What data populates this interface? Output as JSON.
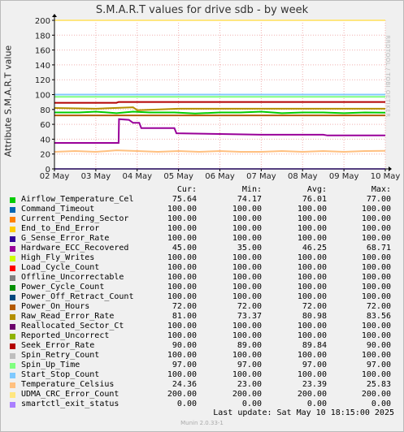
{
  "chart_data": {
    "type": "line",
    "title": "S.M.A.R.T values for drive sdb - by week",
    "ylabel": "Attribute S.M.A.R.T value",
    "xlabel": "",
    "ylim": [
      0,
      200
    ],
    "yticks": [
      0,
      20,
      40,
      60,
      80,
      100,
      120,
      140,
      160,
      180,
      200
    ],
    "xticks": [
      "02 May",
      "03 May",
      "04 May",
      "05 May",
      "06 May",
      "07 May",
      "08 May",
      "09 May",
      "10 May"
    ],
    "grid": true,
    "legend": "below",
    "legend_headers": {
      "cur": "Cur:",
      "min": "Min:",
      "avg": "Avg:",
      "max": "Max:"
    },
    "series": [
      {
        "name": "Airflow_Temperature_Cel",
        "color": "#00cc00",
        "cur": "75.64",
        "min": "74.17",
        "avg": "76.01",
        "max": "77.00"
      },
      {
        "name": "Command_Timeout",
        "color": "#0066b3",
        "cur": "100.00",
        "min": "100.00",
        "avg": "100.00",
        "max": "100.00"
      },
      {
        "name": "Current_Pending_Sector",
        "color": "#ff8000",
        "cur": "100.00",
        "min": "100.00",
        "avg": "100.00",
        "max": "100.00"
      },
      {
        "name": "End_to_End_Error",
        "color": "#ffcc00",
        "cur": "100.00",
        "min": "100.00",
        "avg": "100.00",
        "max": "100.00"
      },
      {
        "name": "G_Sense_Error_Rate",
        "color": "#330099",
        "cur": "100.00",
        "min": "100.00",
        "avg": "100.00",
        "max": "100.00"
      },
      {
        "name": "Hardware_ECC_Recovered",
        "color": "#990099",
        "cur": "45.00",
        "min": "35.00",
        "avg": "46.25",
        "max": "68.71"
      },
      {
        "name": "High_Fly_Writes",
        "color": "#ccff00",
        "cur": "100.00",
        "min": "100.00",
        "avg": "100.00",
        "max": "100.00"
      },
      {
        "name": "Load_Cycle_Count",
        "color": "#ff0000",
        "cur": "100.00",
        "min": "100.00",
        "avg": "100.00",
        "max": "100.00"
      },
      {
        "name": "Offline_Uncorrectable",
        "color": "#808080",
        "cur": "100.00",
        "min": "100.00",
        "avg": "100.00",
        "max": "100.00"
      },
      {
        "name": "Power_Cycle_Count",
        "color": "#008f00",
        "cur": "100.00",
        "min": "100.00",
        "avg": "100.00",
        "max": "100.00"
      },
      {
        "name": "Power_Off_Retract_Count",
        "color": "#00487d",
        "cur": "100.00",
        "min": "100.00",
        "avg": "100.00",
        "max": "100.00"
      },
      {
        "name": "Power_On_Hours",
        "color": "#b35a00",
        "cur": "72.00",
        "min": "72.00",
        "avg": "72.00",
        "max": "72.00"
      },
      {
        "name": "Raw_Read_Error_Rate",
        "color": "#b38f00",
        "cur": "81.00",
        "min": "73.37",
        "avg": "80.98",
        "max": "83.56"
      },
      {
        "name": "Reallocated_Sector_Ct",
        "color": "#6b006b",
        "cur": "100.00",
        "min": "100.00",
        "avg": "100.00",
        "max": "100.00"
      },
      {
        "name": "Reported_Uncorrect",
        "color": "#8fb300",
        "cur": "100.00",
        "min": "100.00",
        "avg": "100.00",
        "max": "100.00"
      },
      {
        "name": "Seek_Error_Rate",
        "color": "#b30000",
        "cur": "90.00",
        "min": "89.00",
        "avg": "89.84",
        "max": "90.00"
      },
      {
        "name": "Spin_Retry_Count",
        "color": "#bebebe",
        "cur": "100.00",
        "min": "100.00",
        "avg": "100.00",
        "max": "100.00"
      },
      {
        "name": "Spin_Up_Time",
        "color": "#80ff80",
        "cur": "97.00",
        "min": "97.00",
        "avg": "97.00",
        "max": "97.00"
      },
      {
        "name": "Start_Stop_Count",
        "color": "#80c9ff",
        "cur": "100.00",
        "min": "100.00",
        "avg": "100.00",
        "max": "100.00"
      },
      {
        "name": "Temperature_Celsius",
        "color": "#ffc080",
        "cur": "24.36",
        "min": "23.00",
        "avg": "23.39",
        "max": "25.83"
      },
      {
        "name": "UDMA_CRC_Error_Count",
        "color": "#ffe680",
        "cur": "200.00",
        "min": "200.00",
        "avg": "200.00",
        "max": "200.00"
      },
      {
        "name": "smartctl_exit_status",
        "color": "#aa80ff",
        "cur": "0.00",
        "min": "0.00",
        "avg": "0.00",
        "max": "0.00"
      }
    ],
    "lines": {
      "Hardware_ECC_Recovered": {
        "x": [
          2.0,
          3.55,
          3.56,
          3.8,
          3.9,
          4.05,
          4.1,
          4.9,
          4.95,
          6.0,
          7.0,
          7.5,
          8.0,
          8.5,
          8.6,
          10.0
        ],
        "y": [
          35,
          35,
          67,
          66,
          62,
          62,
          55,
          55,
          48,
          47,
          46,
          46,
          46,
          46,
          45,
          45
        ]
      },
      "Airflow_Temperature_Cel": {
        "x": [
          2.0,
          2.6,
          3.0,
          3.5,
          3.9,
          4.3,
          4.9,
          5.4,
          6.0,
          6.5,
          7.0,
          7.5,
          8.0,
          8.5,
          9.0,
          9.5,
          10.0
        ],
        "y": [
          76,
          76,
          77,
          75,
          77,
          76,
          76,
          74.5,
          76,
          76,
          77,
          75,
          76,
          76,
          75,
          76,
          75.6
        ]
      },
      "Raw_Read_Error_Rate": {
        "x": [
          2.0,
          3.0,
          3.9,
          4.0,
          5.0,
          6.0,
          7.0,
          8.0,
          9.0,
          10.0
        ],
        "y": [
          82,
          81,
          83,
          79,
          81,
          81,
          81,
          81,
          81,
          81
        ]
      },
      "Temperature_Celsius": {
        "x": [
          2.0,
          2.5,
          3.0,
          3.5,
          4.0,
          4.5,
          5.0,
          5.5,
          6.0,
          6.5,
          7.0,
          7.5,
          8.0,
          8.5,
          9.0,
          9.5,
          10.0
        ],
        "y": [
          23,
          24,
          23,
          25,
          24,
          23,
          24,
          23,
          24,
          23,
          23,
          24,
          23,
          24,
          23,
          24,
          24.4
        ]
      },
      "Seek_Error_Rate": {
        "x": [
          2.0,
          3.5,
          3.55,
          10.0
        ],
        "y": [
          89,
          89,
          90,
          90
        ]
      }
    }
  },
  "side_tag": "RRDTOOL / TOBI OETIKER",
  "footer": {
    "last_update": "Last update:  Sat May 10 18:15:00 2025",
    "munin": "Munin 2.0.33-1"
  }
}
